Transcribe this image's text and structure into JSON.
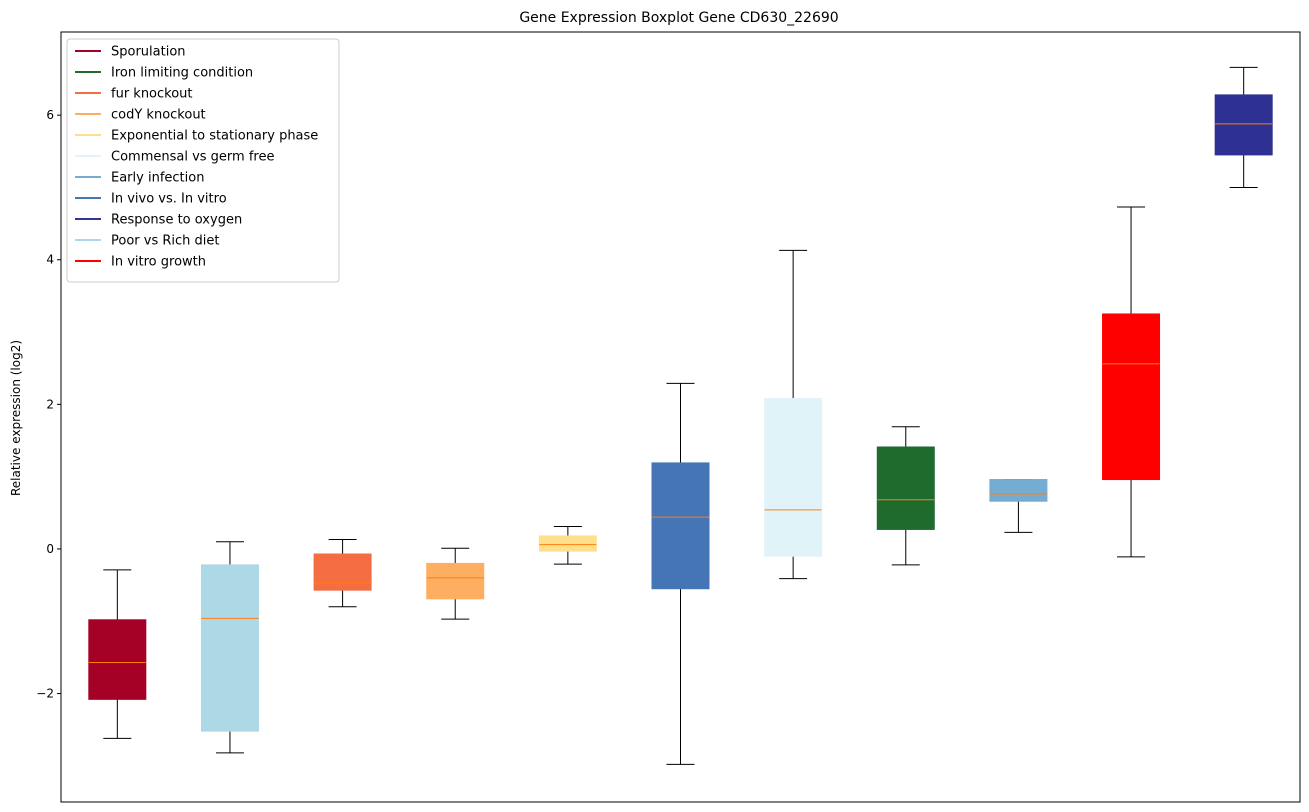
{
  "chart_data": {
    "type": "boxplot",
    "title": "Gene Expression Boxplot Gene CD630_22690",
    "xlabel": "",
    "ylabel": "Relative expression (log2)",
    "ylim": [
      -3.5,
      7.15
    ],
    "yticks": [
      -2,
      0,
      2,
      4,
      6
    ],
    "ytick_labels": [
      "−2",
      "0",
      "2",
      "4",
      "6"
    ],
    "grid": false,
    "legend_position": "upper-left",
    "median_color": "#ff7f0e",
    "legend": [
      {
        "label": "Sporulation",
        "color": "#a50026"
      },
      {
        "label": "Iron limiting condition",
        "color": "#1f6b2e"
      },
      {
        "label": "fur knockout",
        "color": "#f46d43"
      },
      {
        "label": "codY knockout",
        "color": "#fdae61"
      },
      {
        "label": "Exponential to stationary phase",
        "color": "#fee08b"
      },
      {
        "label": "Commensal vs germ free",
        "color": "#e0f3f8"
      },
      {
        "label": "Early infection",
        "color": "#74add1"
      },
      {
        "label": "In vivo vs. In vitro",
        "color": "#4575b4"
      },
      {
        "label": "Response to oxygen",
        "color": "#313695"
      },
      {
        "label": "Poor vs Rich diet",
        "color": "#abd9e9"
      },
      {
        "label": "In vitro growth",
        "color": "#ff0000"
      }
    ],
    "boxes": [
      {
        "name": "Sporulation",
        "color": "#a50026",
        "whislo": -2.62,
        "q1": -2.08,
        "med": -1.57,
        "q3": -0.98,
        "whishi": -0.29
      },
      {
        "name": "Poor vs Rich diet",
        "color": "#add8e6",
        "whislo": -2.82,
        "q1": -2.52,
        "med": -0.96,
        "q3": -0.22,
        "whishi": 0.1
      },
      {
        "name": "fur knockout",
        "color": "#f46d43",
        "whislo": -0.8,
        "q1": -0.57,
        "med": -0.47,
        "q3": -0.07,
        "whishi": 0.13
      },
      {
        "name": "codY knockout",
        "color": "#fdae61",
        "whislo": -0.97,
        "q1": -0.69,
        "med": -0.4,
        "q3": -0.2,
        "whishi": 0.01
      },
      {
        "name": "Exponential to stationary phase",
        "color": "#fee08b",
        "whislo": -0.21,
        "q1": -0.03,
        "med": 0.06,
        "q3": 0.18,
        "whishi": 0.31
      },
      {
        "name": "In vivo vs. In vitro",
        "color": "#4575b4",
        "whislo": -2.98,
        "q1": -0.55,
        "med": 0.44,
        "q3": 1.19,
        "whishi": 2.29
      },
      {
        "name": "Commensal vs germ free",
        "color": "#e0f3f8",
        "whislo": -0.41,
        "q1": -0.1,
        "med": 0.54,
        "q3": 2.08,
        "whishi": 4.13
      },
      {
        "name": "Iron limiting condition",
        "color": "#1f6b2e",
        "whislo": -0.22,
        "q1": 0.27,
        "med": 0.68,
        "q3": 1.41,
        "whishi": 1.69
      },
      {
        "name": "Early infection",
        "color": "#74add1",
        "whislo": 0.23,
        "q1": 0.66,
        "med": 0.76,
        "q3": 0.96,
        "whishi": 0.96
      },
      {
        "name": "In vitro growth",
        "color": "#ff0000",
        "whislo": -0.11,
        "q1": 0.96,
        "med": 2.56,
        "q3": 3.25,
        "whishi": 4.73
      },
      {
        "name": "Response to oxygen",
        "color": "#2e3192",
        "whislo": 5.0,
        "q1": 5.45,
        "med": 5.88,
        "q3": 6.28,
        "whishi": 6.66
      }
    ]
  }
}
